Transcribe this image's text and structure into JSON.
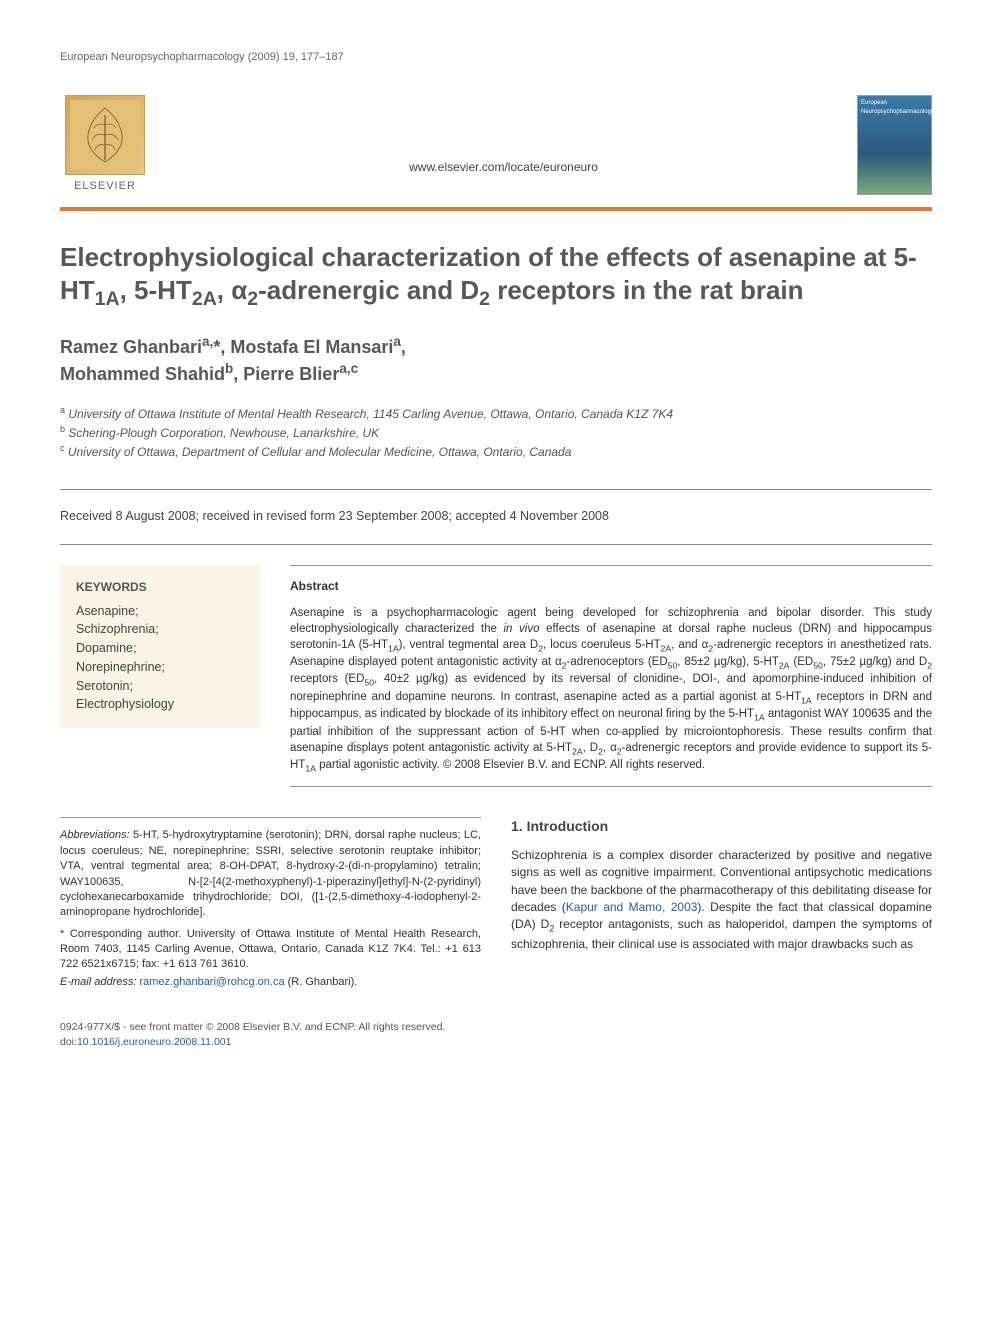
{
  "running_header": "European Neuropsychopharmacology (2009) 19, 177–187",
  "header": {
    "publisher": "ELSEVIER",
    "site_url": "www.elsevier.com/locate/euroneuro",
    "journal_cover_label": "European Neuropsychopharmacology"
  },
  "title_html": "Electrophysiological characterization of the effects of asenapine at 5-HT<sub>1A</sub>, 5-HT<sub>2A</sub>, α<sub>2</sub>-adrenergic and D<sub>2</sub> receptors in the rat brain",
  "authors_html": "Ramez Ghanbari<sup>a,</sup>*, Mostafa El Mansari<sup>a</sup>,<br>Mohammed Shahid<sup>b</sup>, Pierre Blier<sup>a,c</sup>",
  "affiliations": [
    {
      "sup": "a",
      "text": "University of Ottawa Institute of Mental Health Research, 1145 Carling Avenue, Ottawa, Ontario, Canada K1Z 7K4"
    },
    {
      "sup": "b",
      "text": "Schering-Plough Corporation, Newhouse, Lanarkshire, UK"
    },
    {
      "sup": "c",
      "text": "University of Ottawa, Department of Cellular and Molecular Medicine, Ottawa, Ontario, Canada"
    }
  ],
  "history": "Received 8 August 2008; received in revised form 23 September 2008; accepted 4 November 2008",
  "keywords": {
    "heading": "KEYWORDS",
    "items": [
      "Asenapine;",
      "Schizophrenia;",
      "Dopamine;",
      "Norepinephrine;",
      "Serotonin;",
      "Electrophysiology"
    ]
  },
  "abstract": {
    "heading": "Abstract",
    "body_html": "Asenapine is a psychopharmacologic agent being developed for schizophrenia and bipolar disorder. This study electrophysiologically characterized the <i>in vivo</i> effects of asenapine at dorsal raphe nucleus (DRN) and hippocampus serotonin-1A (5-HT<sub>1A</sub>), ventral tegmental area D<sub>2</sub>, locus coeruleus 5-HT<sub>2A</sub>, and α<sub>2</sub>-adrenergic receptors in anesthetized rats. Asenapine displayed potent antagonistic activity at α<sub>2</sub>-adrenoceptors (ED<sub>50</sub>, 85±2 µg/kg), 5-HT<sub>2A</sub> (ED<sub>50</sub>, 75±2 µg/kg) and D<sub>2</sub> receptors (ED<sub>50</sub>, 40±2 µg/kg) as evidenced by its reversal of clonidine-, DOI-, and apomorphine-induced inhibition of norepinephrine and dopamine neurons. In contrast, asenapine acted as a partial agonist at 5-HT<sub>1A</sub> receptors in DRN and hippocampus, as indicated by blockade of its inhibitory effect on neuronal firing by the 5-HT<sub>1A</sub> antagonist WAY 100635 and the partial inhibition of the suppressant action of 5-HT when co-applied by microiontophoresis. These results confirm that asenapine displays potent antagonistic activity at 5-HT<sub>2A</sub>, D<sub>2</sub>, α<sub>2</sub>-adrenergic receptors and provide evidence to support its 5-HT<sub>1A</sub> partial agonistic activity. © 2008 Elsevier B.V. and ECNP. All rights reserved."
  },
  "footnotes": {
    "abbrev_label": "Abbreviations:",
    "abbrev_body": " 5-HT, 5-hydroxytryptamine (serotonin); DRN, dorsal raphe nucleus; LC, locus coeruleus; NE, norepinephrine; SSRI, selective serotonin reuptake inhibitor; VTA, ventral tegmental area; 8-OH-DPAT, 8-hydroxy-2-(di-n-propylamino) tetralin; WAY100635, N-[2-[4(2-methoxyphenyl)-1-piperazinyl]ethyl]-N-(2-pyridinyl) cyclohexanecarboxamide trihydrochloride; DOI, ([1-(2,5-dimethoxy-4-iodophenyl-2-aminopropane hydrochloride].",
    "corresponding": "* Corresponding author. University of Ottawa Institute of Mental Health Research, Room 7403, 1145 Carling Avenue, Ottawa, Ontario, Canada K1Z 7K4. Tel.: +1 613 722 6521x6715; fax: +1 613 761 3610.",
    "email_label": "E-mail address:",
    "email": "ramez.ghanbari@rohcg.on.ca",
    "email_suffix": " (R. Ghanbari)."
  },
  "introduction": {
    "heading": "1. Introduction",
    "body_html": "Schizophrenia is a complex disorder characterized by positive and negative signs as well as cognitive impairment. Conventional antipsychotic medications have been the backbone of the pharmacotherapy of this debilitating disease for decades (<span class='ref-link'>Kapur and Mamo, 2003</span>). Despite the fact that classical dopamine (DA) D<sub>2</sub> receptor antagonists, such as haloperidol, dampen the symptoms of schizophrenia, their clinical use is associated with major drawbacks such as"
  },
  "footer": {
    "copyright": "0924-977X/$ - see front matter © 2008 Elsevier B.V. and ECNP. All rights reserved.",
    "doi_prefix": "doi:",
    "doi": "10.1016/j.euroneuro.2008.11.001"
  },
  "colors": {
    "orange_rule": "#e47b2e",
    "keywords_bg": "#faf3e6",
    "link": "#2a5aaa",
    "heading_gray": "#585858"
  }
}
